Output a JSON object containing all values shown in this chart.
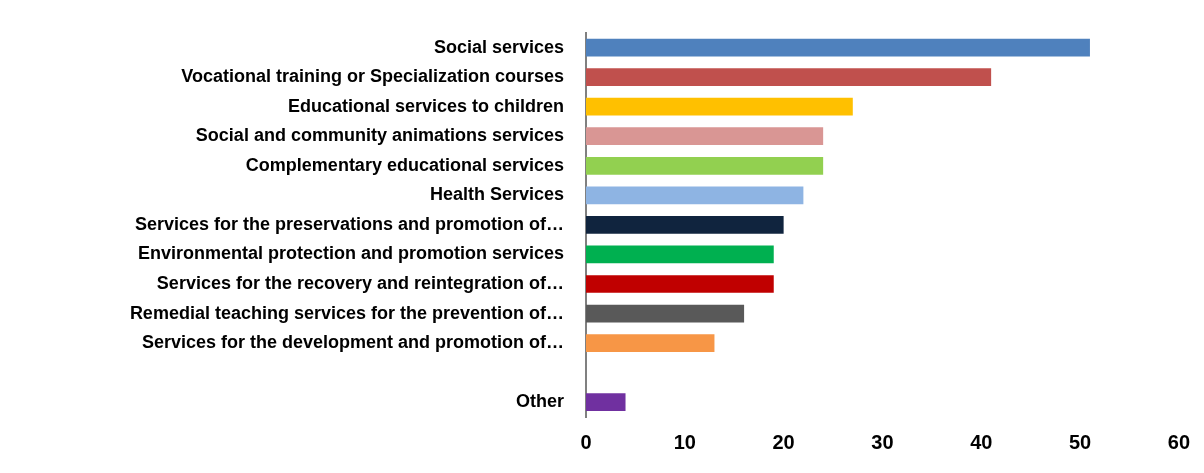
{
  "chart_data": {
    "type": "bar",
    "orientation": "horizontal",
    "categories": [
      "Social services",
      "Vocational training or Specialization courses",
      "Educational services to children",
      "Social and community animations services",
      "Complementary educational services",
      "Health Services",
      "Services for the preservations and promotion of…",
      "Environmental protection and promotion services",
      "Services for the recovery and reintegration of…",
      "Remedial teaching services for the prevention of…",
      "Services for the development and promotion of…",
      null,
      "Other"
    ],
    "values": [
      51,
      41,
      27,
      24,
      24,
      22,
      20,
      19,
      19,
      16,
      13,
      null,
      4
    ],
    "colors": [
      "#4f81bd",
      "#c0504d",
      "#ffc000",
      "#d99694",
      "#92d050",
      "#8eb4e3",
      "#10243e",
      "#00b050",
      "#c00000",
      "#595959",
      "#f79646",
      "#ffffff",
      "#7030a0"
    ],
    "xlim": [
      0,
      60
    ],
    "xticks": [
      0,
      10,
      20,
      30,
      40,
      50,
      60
    ]
  }
}
